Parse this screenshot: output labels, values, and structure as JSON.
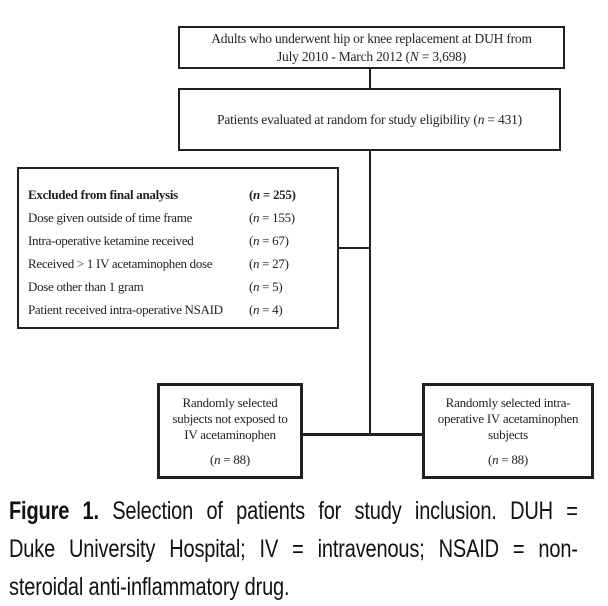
{
  "colors": {
    "ink": "#231f20",
    "caption_ink": "#111111",
    "paper": "#ffffff"
  },
  "flowchart": {
    "population_box": {
      "line1": "Adults who underwent hip or knee replacement at DUH from",
      "line2_open": "July 2010 - March 2012 (",
      "line2_var": "N",
      "line2_rest": " = 3,698)"
    },
    "eligibility_box": {
      "text_open": "Patients evaluated at random  for study eligibility (",
      "text_var": "n",
      "text_rest": " = 431)"
    },
    "excluded_box": {
      "rows": [
        {
          "label": "Excluded from final analysis",
          "count_open": "(",
          "count_var": "n",
          "count_rest": " = 255)"
        },
        {
          "label": "Dose given outside of time frame",
          "count_open": "(",
          "count_var": "n",
          "count_rest": " = 155)"
        },
        {
          "label": "Intra-operative ketamine received",
          "count_open": "(",
          "count_var": "n",
          "count_rest": " = 67)"
        },
        {
          "label": "Received > 1 IV acetaminophen dose",
          "count_open": "(",
          "count_var": "n",
          "count_rest": " = 27)"
        },
        {
          "label": "Dose other than 1 gram",
          "count_open": "(",
          "count_var": "n",
          "count_rest": " = 5)"
        },
        {
          "label": "Patient received intra-operative NSAID",
          "count_open": "(",
          "count_var": "n",
          "count_rest": " = 4)"
        }
      ]
    },
    "control_box": {
      "line1": "Randomly selected",
      "line2": "subjects not exposed to",
      "line3": "IV acetaminophen",
      "count_open": "(",
      "count_var": "n",
      "count_rest": " = 88)"
    },
    "treatment_box": {
      "line1": "Randomly selected intra-",
      "line2": "operative IV acetaminophen",
      "line3": "subjects",
      "count_open": "(",
      "count_var": "n",
      "count_rest": " = 88)"
    }
  },
  "caption": {
    "label": "Figure 1.",
    "line1_rest": " Selection of patients for study inclusion. DUH =",
    "line2": "Duke University Hospital; IV = intravenous; NSAID = non-",
    "line3": "steroidal anti-inflammatory drug.",
    "full_text": "Figure 1. Selection of patients for study inclusion. DUH = Duke University Hospital; IV = intravenous; NSAID = non-steroidal anti-inflammatory drug."
  }
}
